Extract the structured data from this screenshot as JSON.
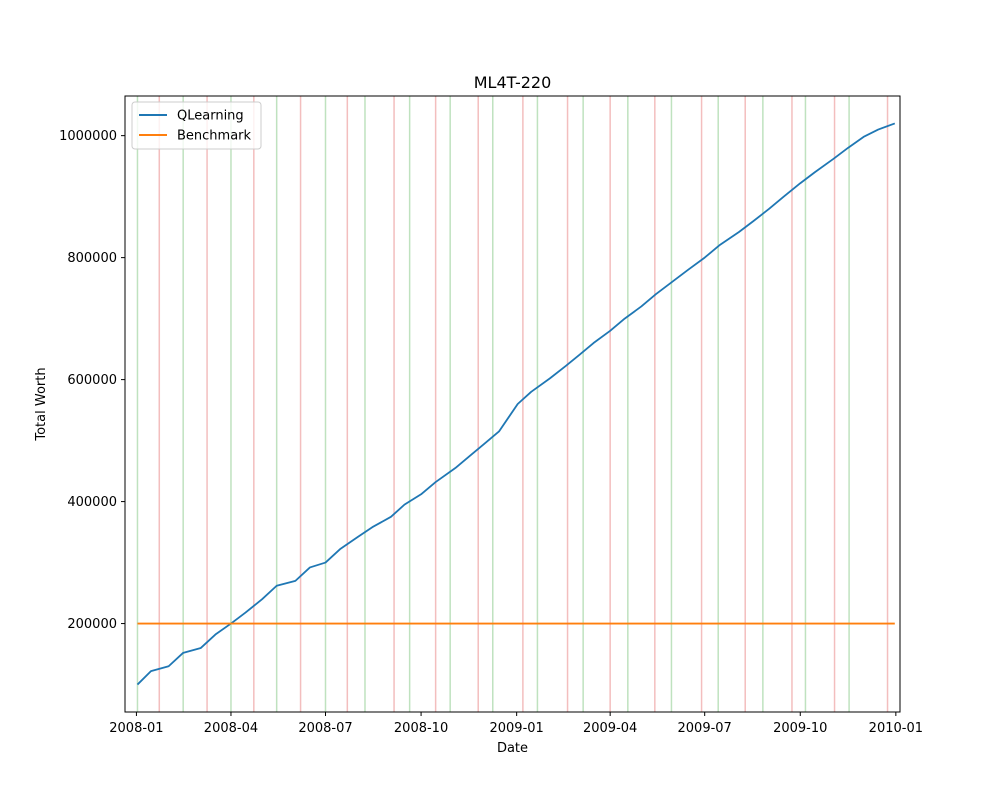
{
  "chart_data": {
    "type": "line",
    "title": "ML4T-220",
    "xlabel": "Date",
    "ylabel": "Total Worth",
    "x_range": [
      "2007-12-21",
      "2010-01-05"
    ],
    "ylim": [
      55000,
      1065000
    ],
    "x_ticks": [
      {
        "label": "2008-01",
        "date": "2008-01-01"
      },
      {
        "label": "2008-04",
        "date": "2008-04-01"
      },
      {
        "label": "2008-07",
        "date": "2008-07-01"
      },
      {
        "label": "2008-10",
        "date": "2008-10-01"
      },
      {
        "label": "2009-01",
        "date": "2009-01-01"
      },
      {
        "label": "2009-04",
        "date": "2009-04-01"
      },
      {
        "label": "2009-07",
        "date": "2009-07-01"
      },
      {
        "label": "2009-10",
        "date": "2009-10-01"
      },
      {
        "label": "2010-01",
        "date": "2010-01-01"
      }
    ],
    "y_ticks": [
      200000,
      400000,
      600000,
      800000,
      1000000
    ],
    "legend": {
      "placement": "top-left",
      "entries": [
        {
          "label": "QLearning",
          "color": "#1f77b4"
        },
        {
          "label": "Benchmark",
          "color": "#ff7f0e"
        }
      ]
    },
    "series": [
      {
        "name": "QLearning",
        "color": "#1f77b4",
        "x": [
          "2008-01-02",
          "2008-01-15",
          "2008-02-01",
          "2008-02-15",
          "2008-03-03",
          "2008-03-17",
          "2008-04-01",
          "2008-04-15",
          "2008-05-01",
          "2008-05-15",
          "2008-06-02",
          "2008-06-16",
          "2008-07-01",
          "2008-07-15",
          "2008-08-01",
          "2008-08-15",
          "2008-09-02",
          "2008-09-15",
          "2008-10-01",
          "2008-10-15",
          "2008-11-03",
          "2008-11-17",
          "2008-12-01",
          "2008-12-15",
          "2009-01-02",
          "2009-01-15",
          "2009-02-02",
          "2009-02-17",
          "2009-03-02",
          "2009-03-16",
          "2009-04-01",
          "2009-04-15",
          "2009-05-01",
          "2009-05-15",
          "2009-06-01",
          "2009-06-15",
          "2009-07-01",
          "2009-07-15",
          "2009-08-03",
          "2009-08-17",
          "2009-09-01",
          "2009-09-15",
          "2009-10-01",
          "2009-10-15",
          "2009-11-02",
          "2009-11-16",
          "2009-12-01",
          "2009-12-15",
          "2009-12-31"
        ],
        "y": [
          100000,
          122000,
          130000,
          152000,
          160000,
          182000,
          200000,
          218000,
          240000,
          262000,
          270000,
          292000,
          300000,
          322000,
          342000,
          358000,
          375000,
          395000,
          412000,
          432000,
          455000,
          475000,
          495000,
          515000,
          560000,
          580000,
          602000,
          622000,
          640000,
          660000,
          680000,
          700000,
          720000,
          740000,
          762000,
          780000,
          800000,
          820000,
          842000,
          860000,
          880000,
          900000,
          922000,
          940000,
          962000,
          980000,
          998000,
          1010000,
          1020000
        ]
      },
      {
        "name": "Benchmark",
        "color": "#ff7f0e",
        "x": [
          "2008-01-02",
          "2009-12-31"
        ],
        "y": [
          200000,
          200000
        ]
      }
    ],
    "vertical_lines": {
      "buy_color": "#2ca02c",
      "sell_color": "#d62728",
      "buy": [
        "2008-01-02",
        "2008-02-15",
        "2008-04-01",
        "2008-05-15",
        "2008-07-01",
        "2008-08-08",
        "2008-09-20",
        "2008-10-29",
        "2008-12-09",
        "2009-01-21",
        "2009-03-06",
        "2009-04-18",
        "2009-05-30",
        "2009-07-14",
        "2009-08-26",
        "2009-10-06",
        "2009-11-17"
      ],
      "sell": [
        "2008-01-23",
        "2008-03-09",
        "2008-04-23",
        "2008-06-07",
        "2008-07-22",
        "2008-09-05",
        "2008-10-15",
        "2008-11-25",
        "2009-01-07",
        "2009-02-19",
        "2009-04-01",
        "2009-05-14",
        "2009-06-28",
        "2009-08-09",
        "2009-09-23",
        "2009-11-03",
        "2009-12-24"
      ]
    }
  }
}
